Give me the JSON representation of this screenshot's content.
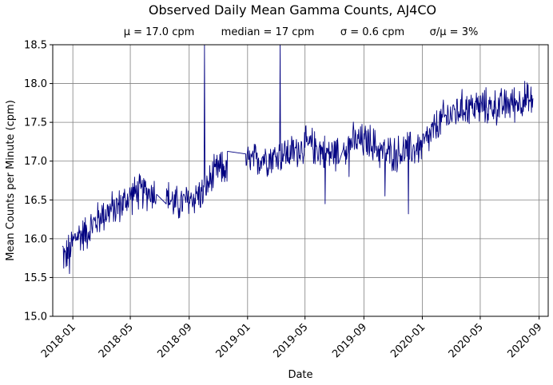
{
  "chart_data": {
    "type": "line",
    "title": "Observed Daily Mean Gamma Counts, AJ4CO",
    "subtitle": {
      "mean": "μ = 17.0 cpm",
      "median": "median = 17 cpm",
      "sigma": "σ = 0.6 cpm",
      "ratio": "σ/μ = 3%"
    },
    "xlabel": "Date",
    "ylabel": "Mean Counts per Minute (cpm)",
    "xlim": [
      "2017-11-20",
      "2020-09-20"
    ],
    "ylim": [
      15.0,
      18.5
    ],
    "grid": true,
    "line_color": "#000080",
    "x_ticks": [
      "2018-01",
      "2018-05",
      "2018-09",
      "2019-01",
      "2019-05",
      "2019-09",
      "2020-01",
      "2020-05",
      "2020-09"
    ],
    "y_ticks": [
      "15.0",
      "15.5",
      "16.0",
      "16.5",
      "17.0",
      "17.5",
      "18.0",
      "18.5"
    ],
    "series": [
      {
        "points": [
          [
            "2017-12-10",
            15.85
          ],
          [
            "2017-12-15",
            15.75
          ],
          [
            "2017-12-20",
            15.8
          ],
          [
            "2017-12-25",
            15.85
          ],
          [
            "2018-01-01",
            15.95
          ],
          [
            "2018-01-10",
            16.05
          ],
          [
            "2018-01-20",
            16.05
          ],
          [
            "2018-02-01",
            16.1
          ],
          [
            "2018-02-15",
            16.2
          ],
          [
            "2018-03-01",
            16.3
          ],
          [
            "2018-03-15",
            16.35
          ],
          [
            "2018-04-01",
            16.4
          ],
          [
            "2018-04-15",
            16.45
          ],
          [
            "2018-05-01",
            16.55
          ],
          [
            "2018-05-15",
            16.6
          ],
          [
            "2018-06-01",
            16.6
          ],
          [
            "2018-06-15",
            16.6
          ],
          [
            "2018-07-01",
            16.6
          ],
          [
            "2018-07-15",
            16.55
          ],
          [
            "2018-08-01",
            16.45
          ],
          [
            "2018-08-15",
            16.45
          ],
          [
            "2018-09-01",
            16.5
          ],
          [
            "2018-09-15",
            16.55
          ],
          [
            "2018-10-01",
            16.6
          ],
          [
            "2018-10-15",
            16.75
          ],
          [
            "2018-11-01",
            16.9
          ],
          [
            "2018-11-15",
            16.9
          ],
          [
            "2018-12-01",
            16.95
          ],
          [
            "2018-12-15",
            17.0
          ],
          [
            "2019-01-01",
            17.0
          ],
          [
            "2019-01-15",
            17.0
          ],
          [
            "2019-02-01",
            17.05
          ],
          [
            "2019-02-15",
            17.05
          ],
          [
            "2019-03-01",
            17.05
          ],
          [
            "2019-03-15",
            17.1
          ],
          [
            "2019-04-01",
            17.1
          ],
          [
            "2019-04-15",
            17.15
          ],
          [
            "2019-05-01",
            17.2
          ],
          [
            "2019-05-15",
            17.2
          ],
          [
            "2019-06-01",
            17.15
          ],
          [
            "2019-06-15",
            17.1
          ],
          [
            "2019-07-01",
            17.1
          ],
          [
            "2019-07-15",
            17.15
          ],
          [
            "2019-08-01",
            17.25
          ],
          [
            "2019-08-15",
            17.25
          ],
          [
            "2019-09-01",
            17.25
          ],
          [
            "2019-09-15",
            17.25
          ],
          [
            "2019-10-01",
            17.15
          ],
          [
            "2019-10-15",
            17.1
          ],
          [
            "2019-11-01",
            17.1
          ],
          [
            "2019-11-15",
            17.1
          ],
          [
            "2019-12-01",
            17.15
          ],
          [
            "2019-12-15",
            17.15
          ],
          [
            "2020-01-01",
            17.2
          ],
          [
            "2020-01-15",
            17.3
          ],
          [
            "2020-02-01",
            17.45
          ],
          [
            "2020-02-15",
            17.55
          ],
          [
            "2020-03-01",
            17.6
          ],
          [
            "2020-03-15",
            17.65
          ],
          [
            "2020-04-01",
            17.7
          ],
          [
            "2020-04-15",
            17.7
          ],
          [
            "2020-05-01",
            17.7
          ],
          [
            "2020-05-15",
            17.7
          ],
          [
            "2020-06-01",
            17.7
          ],
          [
            "2020-06-15",
            17.7
          ],
          [
            "2020-07-01",
            17.75
          ],
          [
            "2020-07-15",
            17.75
          ],
          [
            "2020-08-01",
            17.8
          ],
          [
            "2020-08-15",
            17.75
          ],
          [
            "2020-08-20",
            17.8
          ]
        ],
        "noise_amplitude": 0.28,
        "spikes": [
          [
            "2018-10-03",
            18.5
          ],
          [
            "2019-03-10",
            18.5
          ],
          [
            "2019-06-12",
            16.45
          ],
          [
            "2019-12-03",
            16.32
          ],
          [
            "2019-10-15",
            16.55
          ],
          [
            "2017-12-25",
            15.55
          ],
          [
            "2019-08-01",
            16.8
          ]
        ]
      }
    ]
  }
}
